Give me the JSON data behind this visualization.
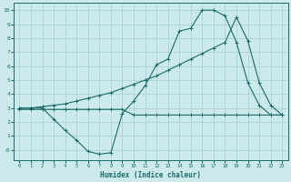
{
  "xlabel": "Humidex (Indice chaleur)",
  "bg_color": "#cceaec",
  "grid_color": "#aad4d8",
  "line_color": "#1a6b6b",
  "xlim": [
    -0.5,
    23.5
  ],
  "ylim": [
    -0.7,
    10.5
  ],
  "xticks": [
    0,
    1,
    2,
    3,
    4,
    5,
    6,
    7,
    8,
    9,
    10,
    11,
    12,
    13,
    14,
    15,
    16,
    17,
    18,
    19,
    20,
    21,
    22,
    23
  ],
  "yticks": [
    0,
    1,
    2,
    3,
    4,
    5,
    6,
    7,
    8,
    9,
    10
  ],
  "ytick_labels": [
    "-0",
    "1",
    "2",
    "3",
    "4",
    "5",
    "6",
    "7",
    "8",
    "9",
    "10"
  ],
  "line1_x": [
    0,
    1,
    2,
    3,
    4,
    5,
    6,
    7,
    8,
    9,
    10,
    11,
    12,
    13,
    14,
    15,
    16,
    17,
    18,
    19,
    20,
    21,
    22,
    23
  ],
  "line1_y": [
    2.9,
    2.9,
    2.9,
    2.9,
    2.9,
    2.9,
    2.9,
    2.9,
    2.9,
    2.9,
    2.5,
    2.5,
    2.5,
    2.5,
    2.5,
    2.5,
    2.5,
    2.5,
    2.5,
    2.5,
    2.5,
    2.5,
    2.5,
    2.5
  ],
  "line2_x": [
    0,
    1,
    2,
    3,
    4,
    5,
    6,
    7,
    8,
    9,
    10,
    11,
    12,
    13,
    14,
    15,
    16,
    17,
    18,
    19,
    20,
    21,
    22,
    23
  ],
  "line2_y": [
    3.0,
    3.0,
    3.0,
    2.2,
    1.4,
    0.7,
    -0.1,
    -0.3,
    -0.2,
    2.6,
    3.5,
    4.6,
    6.1,
    6.5,
    8.5,
    8.7,
    10.0,
    10.0,
    9.6,
    7.7,
    4.8,
    3.2,
    2.5,
    2.5
  ],
  "line3_x": [
    0,
    1,
    2,
    3,
    4,
    5,
    6,
    7,
    8,
    9,
    10,
    11,
    12,
    13,
    14,
    15,
    16,
    17,
    18,
    19,
    20,
    21,
    22,
    23
  ],
  "line3_y": [
    3.0,
    3.0,
    3.1,
    3.2,
    3.3,
    3.5,
    3.7,
    3.9,
    4.1,
    4.4,
    4.7,
    5.0,
    5.3,
    5.7,
    6.1,
    6.5,
    6.9,
    7.3,
    7.7,
    9.5,
    7.8,
    4.8,
    3.2,
    2.5
  ]
}
